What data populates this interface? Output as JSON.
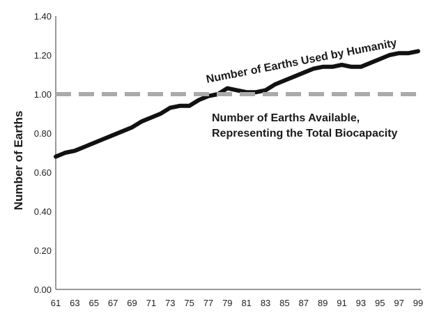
{
  "chart_data": {
    "type": "line",
    "title": "",
    "xlabel": "",
    "ylabel": "Number of Earths",
    "xlim": [
      61,
      99
    ],
    "ylim": [
      0,
      1.4
    ],
    "grid": false,
    "x_tick_labels": [
      "61",
      "63",
      "65",
      "67",
      "69",
      "71",
      "73",
      "75",
      "77",
      "79",
      "81",
      "83",
      "85",
      "87",
      "89",
      "91",
      "93",
      "95",
      "97",
      "99"
    ],
    "y_tick_labels": [
      "0.00",
      "0.20",
      "0.40",
      "0.60",
      "0.80",
      "1.00",
      "1.20",
      "1.40"
    ],
    "series": [
      {
        "name": "Number of Earths Used by Humanity",
        "style": "solid",
        "color": "#111111",
        "x": [
          61,
          62,
          63,
          64,
          65,
          66,
          67,
          68,
          69,
          70,
          71,
          72,
          73,
          74,
          75,
          76,
          77,
          78,
          79,
          80,
          81,
          82,
          83,
          84,
          85,
          86,
          87,
          88,
          89,
          90,
          91,
          92,
          93,
          94,
          95,
          96,
          97,
          98,
          99
        ],
        "y": [
          0.68,
          0.7,
          0.71,
          0.73,
          0.75,
          0.77,
          0.79,
          0.81,
          0.83,
          0.86,
          0.88,
          0.9,
          0.93,
          0.94,
          0.94,
          0.97,
          0.99,
          1.0,
          1.03,
          1.02,
          1.01,
          1.01,
          1.02,
          1.05,
          1.07,
          1.09,
          1.11,
          1.13,
          1.14,
          1.14,
          1.15,
          1.14,
          1.14,
          1.16,
          1.18,
          1.2,
          1.21,
          1.21,
          1.22
        ]
      },
      {
        "name": "Number of Earths Available, Representing the Total Biocapacity",
        "style": "dashed",
        "color": "#aaaaaa",
        "x": [
          61,
          99
        ],
        "y": [
          1.0,
          1.0
        ]
      }
    ],
    "annotations": [
      "Number of Earths Used by Humanity",
      "Number of Earths Available,",
      "Representing the Total Biocapacity"
    ]
  }
}
